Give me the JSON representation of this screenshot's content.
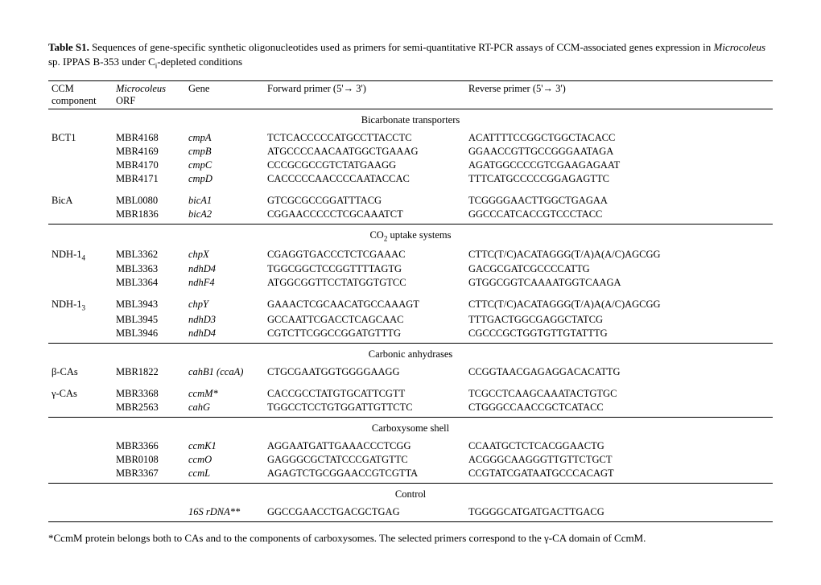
{
  "title_prefix": "Table S1.",
  "title_rest": " Sequences of gene-specific synthetic oligonucleotides used as primers for semi-quantitative RT-PCR assays of CCM-associated genes expression in ",
  "title_italic": "Microcoleus",
  "title_end1": " sp. IPPAS B-353 under C",
  "title_sub": "i",
  "title_end2": "-depleted conditions",
  "headers": {
    "ccm1": "CCM",
    "ccm2": "component",
    "orf_italic": "Microcoleus",
    "orf2": "ORF",
    "gene": "Gene",
    "fwd": "Forward primer (5'→ 3')",
    "rev": "Reverse primer (5'→ 3')"
  },
  "sections": {
    "bicarb": "Bicarbonate transporters",
    "co2a": "CO",
    "co2b": " uptake systems",
    "ca": "Carbonic anhydrases",
    "shell": "Carboxysome shell",
    "control": "Control"
  },
  "rows": {
    "bct1": {
      "ccm": "BCT1",
      "orf": "MBR4168",
      "gene": "cmpA",
      "fwd": "TCTCACCCCCATGCCTTACCTC",
      "rev": "ACATTTTCCGGCTGGCTACACC"
    },
    "bct2": {
      "orf": "MBR4169",
      "gene": "cmpB",
      "fwd": "ATGCCCCAACAATGGCTGAAAG",
      "rev": "GGAACCGTTGCCGGGAATAGA"
    },
    "bct3": {
      "orf": "MBR4170",
      "gene": "cmpC",
      "fwd": "CCCGCGCCGTCTATGAAGG",
      "rev": "AGATGGCCCCGTCGAAGAGAAT"
    },
    "bct4": {
      "orf": "MBR4171",
      "gene": "cmpD",
      "fwd": "CACCCCCAACCCCAATACCAC",
      "rev": "TTTCATGCCCCCGGAGAGTTC"
    },
    "bica1": {
      "ccm": "BicA",
      "orf": "MBL0080",
      "gene": "bicA1",
      "fwd": "GTCGCGCCGGATTTACG",
      "rev": "TCGGGGAACTTGGCTGAGAA"
    },
    "bica2": {
      "orf": "MBR1836",
      "gene": "bicA2",
      "fwd": "CGGAACCCCCTCGCAAATCT",
      "rev": "GGCCCATCACCGTCCCTACC"
    },
    "ndh14a": {
      "ccm_pre": "NDH-1",
      "ccm_sub": "4",
      "orf": "MBL3362",
      "gene": "chpX",
      "fwd": "CGAGGTGACCCTCTCGAAAC",
      "rev": "CTTC(T/C)ACATAGGG(T/A)A(A/C)AGCGG"
    },
    "ndh14b": {
      "orf": "MBL3363",
      "gene": "ndhD4",
      "fwd": "TGGCGGCTCCGGTTTTAGTG",
      "rev": "GACGCGATCGCCCCATTG"
    },
    "ndh14c": {
      "orf": "MBL3364",
      "gene": "ndhF4",
      "fwd": "ATGGCGGTTCCTATGGTGTCC",
      "rev": "GTGGCGGTCAAAATGGTCAAGA"
    },
    "ndh13a": {
      "ccm_pre": "NDH-1",
      "ccm_sub": "3",
      "orf": "MBL3943",
      "gene": "chpY",
      "fwd": "GAAACTCGCAACATGCCAAAGT",
      "rev": "CTTC(T/C)ACATAGGG(T/A)A(A/C)AGCGG"
    },
    "ndh13b": {
      "orf": "MBL3945",
      "gene": "ndhD3",
      "fwd": "GCCAATTCGACCTCAGCAAC",
      "rev": "TTTGACTGGCGAGGCTATCG"
    },
    "ndh13c": {
      "orf": "MBL3946",
      "gene": "ndhD4",
      "fwd": "CGTCTTCGGCCGGATGTTTG",
      "rev": "CGCCCGCTGGTGTTGTATTTG"
    },
    "bca": {
      "ccm": "β-CAs",
      "orf": "MBR1822",
      "gene": "cahB1 (ccaA)",
      "fwd": "CTGCGAATGGTGGGGAAGG",
      "rev": "CCGGTAACGAGAGGACACATTG"
    },
    "gca1": {
      "ccm": "γ-CAs",
      "orf": "MBR3368",
      "gene": "ccmM*",
      "fwd": "CACCGCCTATGTGCATTCGTT",
      "rev": "TCGCCTCAAGCAAATACTGTGC"
    },
    "gca2": {
      "orf": "MBR2563",
      "gene": "cahG",
      "fwd": "TGGCCTCCTGTGGATTGTTCTC",
      "rev": "CTGGGCCAACCGCTCATACC"
    },
    "sh1": {
      "orf": "MBR3366",
      "gene": "ccmK1",
      "fwd": "AGGAATGATTGAAACCCTCGG",
      "rev": "CCAATGCTCTCACGGAACTG"
    },
    "sh2": {
      "orf": "MBR0108",
      "gene": "ccmO",
      "fwd": "GAGGGCGCTATCCCGATGTTC",
      "rev": "ACGGGCAAGGGTTGTTCTGCT"
    },
    "sh3": {
      "orf": "MBR3367",
      "gene": "ccmL",
      "fwd": "AGAGTCTGCGGAACCGTCGTTA",
      "rev": "CCGTATCGATAATGCCCACAGT"
    },
    "ctrl": {
      "gene": "16S rDNA**",
      "fwd": "GGCCGAACCTGACGCTGAG",
      "rev": "TGGGGCATGATGACTTGACG"
    }
  },
  "note": "*CcmM protein belongs both to CAs and to the components of carboxysomes. The selected primers correspond to the γ-CA domain of CcmM."
}
